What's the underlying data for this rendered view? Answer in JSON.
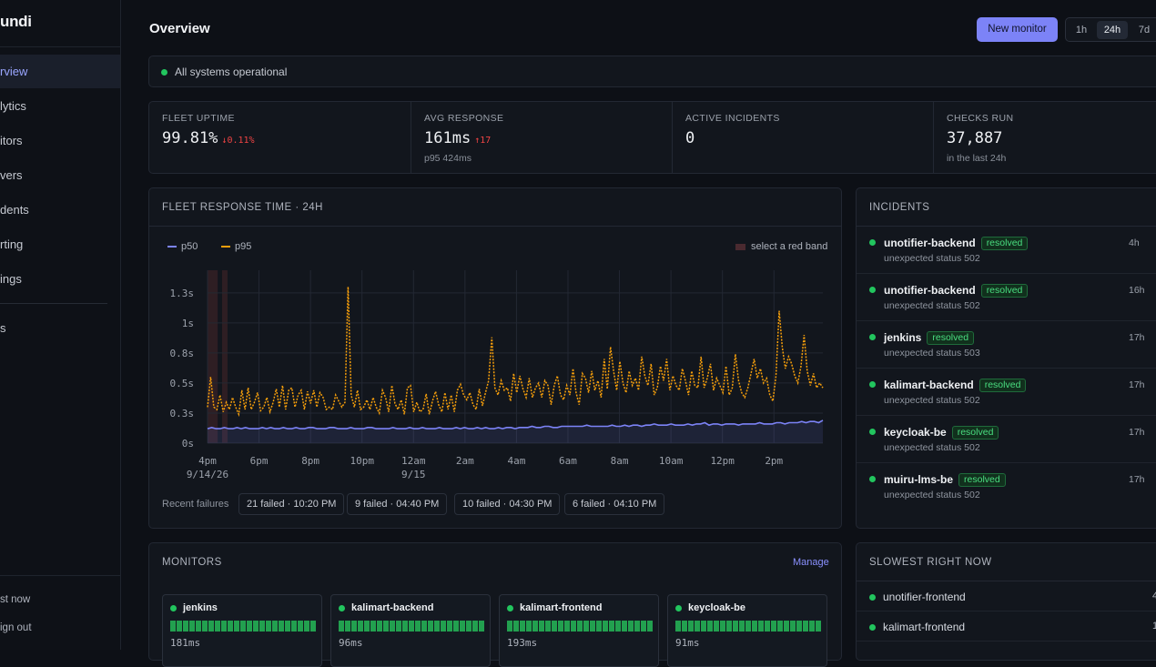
{
  "brand": {
    "name": "undi"
  },
  "sidebar": {
    "items": [
      {
        "label": "rview",
        "active": true
      },
      {
        "label": "lytics"
      },
      {
        "label": "itors"
      },
      {
        "label": "vers"
      },
      {
        "label": "dents"
      },
      {
        "label": "rting"
      },
      {
        "label": "ings"
      },
      {
        "label": "s"
      }
    ],
    "footer": {
      "test_now": "st now",
      "sign_out": "ign out"
    }
  },
  "header": {
    "title": "Overview",
    "new_monitor": "New monitor",
    "ranges": [
      "1h",
      "24h",
      "7d"
    ],
    "active_range": "24h"
  },
  "status": {
    "text": "All systems operational",
    "color": "#22c55e"
  },
  "stats": [
    {
      "label": "FLEET UPTIME",
      "value": "99.81%",
      "delta": "↓0.11%",
      "sub": ""
    },
    {
      "label": "AVG RESPONSE",
      "value": "161ms",
      "delta": "↑17",
      "sub": "p95 424ms"
    },
    {
      "label": "ACTIVE INCIDENTS",
      "value": "0",
      "delta": "",
      "sub": ""
    },
    {
      "label": "CHECKS RUN",
      "value": "37,887",
      "delta": "",
      "sub": "in the last 24h"
    }
  ],
  "response_chart": {
    "title": "FLEET RESPONSE TIME · 24H",
    "legend_band": "select a red band",
    "failures_label": "Recent failures",
    "failures": [
      "21 failed · 10:20 PM",
      "9 failed · 04:40 PM",
      "10 failed · 04:30 PM",
      "6 failed · 04:10 PM"
    ]
  },
  "chart_data": {
    "type": "line",
    "title": "FLEET RESPONSE TIME · 24H",
    "xlabel": "",
    "ylabel": "",
    "y_ticks": [
      "0s",
      "0.3s",
      "0.5s",
      "0.8s",
      "1s",
      "1.3s"
    ],
    "ylim": [
      0,
      1.4
    ],
    "x_ticks": [
      {
        "label": "4pm",
        "sub": "9/14/26",
        "h": 0
      },
      {
        "label": "6pm",
        "sub": "",
        "h": 2
      },
      {
        "label": "8pm",
        "sub": "",
        "h": 4
      },
      {
        "label": "10pm",
        "sub": "",
        "h": 6
      },
      {
        "label": "12am",
        "sub": "9/15",
        "h": 8
      },
      {
        "label": "2am",
        "sub": "",
        "h": 10
      },
      {
        "label": "4am",
        "sub": "",
        "h": 12
      },
      {
        "label": "6am",
        "sub": "",
        "h": 14
      },
      {
        "label": "8am",
        "sub": "",
        "h": 16
      },
      {
        "label": "10am",
        "sub": "",
        "h": 18
      },
      {
        "label": "12pm",
        "sub": "",
        "h": 20
      },
      {
        "label": "2pm",
        "sub": "",
        "h": 22
      }
    ],
    "x_range_hours": [
      0,
      23.9
    ],
    "failure_bands_hours": [
      0.1,
      0.5,
      0.67,
      6.33
    ],
    "grid": true,
    "legend_position": "top-left",
    "series": [
      {
        "name": "p50",
        "color": "#7c83f7",
        "values": [
          0.12,
          0.13,
          0.12,
          0.12,
          0.13,
          0.12,
          0.12,
          0.13,
          0.12,
          0.13,
          0.12,
          0.12,
          0.12,
          0.13,
          0.12,
          0.13,
          0.12,
          0.12,
          0.13,
          0.12,
          0.12,
          0.13,
          0.12,
          0.12,
          0.13,
          0.13,
          0.12,
          0.12,
          0.12,
          0.13,
          0.13,
          0.12,
          0.12,
          0.12,
          0.13,
          0.12,
          0.12,
          0.12,
          0.13,
          0.13,
          0.12,
          0.12,
          0.12,
          0.12,
          0.13,
          0.12,
          0.12,
          0.12,
          0.13,
          0.12,
          0.12,
          0.13,
          0.12,
          0.12,
          0.12,
          0.13,
          0.12,
          0.12,
          0.12,
          0.13,
          0.12,
          0.13,
          0.12,
          0.12,
          0.13,
          0.12,
          0.13,
          0.12,
          0.12,
          0.13,
          0.12,
          0.13,
          0.13,
          0.12,
          0.13,
          0.13,
          0.13,
          0.14,
          0.13,
          0.13,
          0.14,
          0.14,
          0.13,
          0.13,
          0.14,
          0.14,
          0.14,
          0.14,
          0.14,
          0.14,
          0.15,
          0.14,
          0.14,
          0.14,
          0.14,
          0.14,
          0.15,
          0.14,
          0.14,
          0.15,
          0.14,
          0.15,
          0.15,
          0.14,
          0.15,
          0.15,
          0.16,
          0.15,
          0.15,
          0.15,
          0.16,
          0.15,
          0.15,
          0.15,
          0.16,
          0.15,
          0.16,
          0.16,
          0.17,
          0.15,
          0.16,
          0.16,
          0.15,
          0.16,
          0.16,
          0.16,
          0.15,
          0.16,
          0.16,
          0.16,
          0.16,
          0.17,
          0.16,
          0.16,
          0.16,
          0.17,
          0.17,
          0.16,
          0.17,
          0.17,
          0.17,
          0.18,
          0.17,
          0.18,
          0.18,
          0.17,
          0.19
        ]
      },
      {
        "name": "p95",
        "color": "#f59e0b",
        "values": [
          0.3,
          0.55,
          0.3,
          0.28,
          0.4,
          0.26,
          0.34,
          0.28,
          0.38,
          0.3,
          0.24,
          0.44,
          0.28,
          0.46,
          0.28,
          0.34,
          0.42,
          0.27,
          0.3,
          0.38,
          0.26,
          0.34,
          0.45,
          0.3,
          0.48,
          0.28,
          0.44,
          0.46,
          0.3,
          0.4,
          0.44,
          0.28,
          0.43,
          0.33,
          0.44,
          0.3,
          0.42,
          0.38,
          0.28,
          0.3,
          0.28,
          0.4,
          0.35,
          0.3,
          0.34,
          1.3,
          0.4,
          0.3,
          0.44,
          0.28,
          0.3,
          0.36,
          0.28,
          0.38,
          0.3,
          0.25,
          0.44,
          0.38,
          0.26,
          0.48,
          0.33,
          0.28,
          0.36,
          0.24,
          0.46,
          0.48,
          0.26,
          0.34,
          0.26,
          0.28,
          0.41,
          0.24,
          0.35,
          0.43,
          0.32,
          0.26,
          0.42,
          0.28,
          0.4,
          0.26,
          0.44,
          0.49,
          0.4,
          0.36,
          0.42,
          0.32,
          0.28,
          0.45,
          0.31,
          0.42,
          0.52,
          0.88,
          0.46,
          0.4,
          0.52,
          0.44,
          0.46,
          0.35,
          0.58,
          0.42,
          0.56,
          0.45,
          0.38,
          0.54,
          0.38,
          0.46,
          0.5,
          0.38,
          0.52,
          0.48,
          0.32,
          0.48,
          0.56,
          0.4,
          0.36,
          0.48,
          0.4,
          0.62,
          0.42,
          0.32,
          0.58,
          0.54,
          0.42,
          0.6,
          0.44,
          0.52,
          0.38,
          0.7,
          0.45,
          0.8,
          0.6,
          0.44,
          0.68,
          0.5,
          0.42,
          0.6,
          0.48,
          0.54,
          0.44,
          0.72,
          0.56,
          0.48,
          0.66,
          0.4,
          0.46,
          0.64,
          0.52,
          0.7,
          0.44,
          0.56,
          0.48,
          0.44,
          0.62,
          0.52,
          0.4,
          0.6,
          0.48,
          0.46,
          0.72,
          0.46,
          0.54,
          0.66,
          0.44,
          0.54,
          0.48,
          0.42,
          0.64,
          0.4,
          0.46,
          0.74,
          0.52,
          0.42,
          0.38,
          0.46,
          0.58,
          0.7,
          0.54,
          0.62,
          0.5,
          0.54,
          0.4,
          0.35,
          0.56,
          1.1,
          0.8,
          0.62,
          0.72,
          0.66,
          0.56,
          0.5,
          0.64,
          0.9,
          0.6,
          0.48,
          0.58,
          0.46,
          0.5,
          0.46
        ]
      }
    ]
  },
  "incidents": {
    "title": "INCIDENTS",
    "rows": [
      {
        "name": "unotifier-backend",
        "status": "resolved",
        "message": "unexpected status 502",
        "time": "4h"
      },
      {
        "name": "unotifier-backend",
        "status": "resolved",
        "message": "unexpected status 502",
        "time": "16h"
      },
      {
        "name": "jenkins",
        "status": "resolved",
        "message": "unexpected status 503",
        "time": "17h"
      },
      {
        "name": "kalimart-backend",
        "status": "resolved",
        "message": "unexpected status 502",
        "time": "17h"
      },
      {
        "name": "keycloak-be",
        "status": "resolved",
        "message": "unexpected status 502",
        "time": "17h"
      },
      {
        "name": "muiru-lms-be",
        "status": "resolved",
        "message": "unexpected status 502",
        "time": "17h"
      }
    ]
  },
  "monitors": {
    "title": "MONITORS",
    "manage": "Manage",
    "tiles": [
      {
        "name": "jenkins",
        "latency": "181ms"
      },
      {
        "name": "kalimart-backend",
        "latency": "96ms"
      },
      {
        "name": "kalimart-frontend",
        "latency": "193ms"
      },
      {
        "name": "keycloak-be",
        "latency": "91ms"
      }
    ]
  },
  "slowest": {
    "title": "SLOWEST RIGHT NOW",
    "rows": [
      {
        "name": "unotifier-frontend",
        "value": "4"
      },
      {
        "name": "kalimart-frontend",
        "value": "1"
      }
    ]
  }
}
